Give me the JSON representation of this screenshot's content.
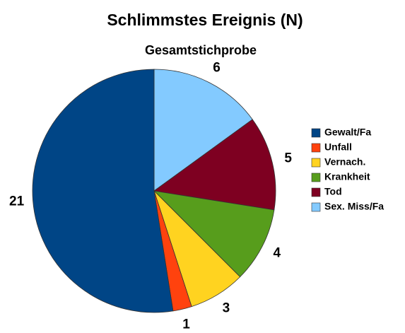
{
  "chart_data": {
    "type": "pie",
    "title": "Schlimmstes Ereignis (N)",
    "subtitle": "Gesamtstichprobe",
    "categories": [
      "Gewalt/Fa",
      "Unfall",
      "Vernach.",
      "Krankheit",
      "Tod",
      "Sex. Miss/Fa"
    ],
    "values": [
      21,
      1,
      3,
      4,
      5,
      6
    ],
    "colors": [
      "#004586",
      "#ff420e",
      "#ffd320",
      "#579d1c",
      "#7e0021",
      "#83caff"
    ],
    "legend": "right"
  }
}
